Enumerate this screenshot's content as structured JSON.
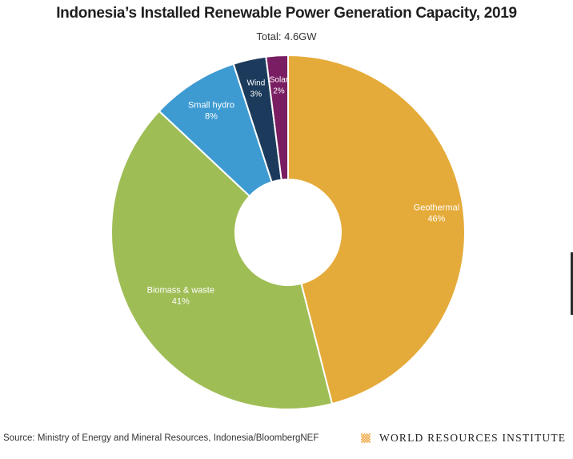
{
  "header": {
    "title": "Indonesia’s Installed Renewable Power Generation Capacity, 2019",
    "subtitle": "Total: 4.6GW"
  },
  "footer": {
    "source": "Source: Ministry of Energy and Mineral Resources, Indonesia/BloombergNEF",
    "org_name": "WORLD RESOURCES INSTITUTE",
    "org_logo_icon": "wri-diamond-logo-icon",
    "org_logo_color": "#f0a848"
  },
  "chart_data": {
    "type": "pie",
    "title": "Indonesia’s Installed Renewable Power Generation Capacity, 2019",
    "subtitle": "Total: 4.6GW",
    "total": "4.6GW",
    "donut": true,
    "slices": [
      {
        "label": "Geothermal",
        "value": 46,
        "value_label": "46%",
        "color": "#e5ab3a"
      },
      {
        "label": "Biomass & waste",
        "value": 41,
        "value_label": "41%",
        "color": "#9fbd55"
      },
      {
        "label": "Small hydro",
        "value": 8,
        "value_label": "8%",
        "color": "#3d9bd2"
      },
      {
        "label": "Wind",
        "value": 3,
        "value_label": "3%",
        "color": "#1c3b5c"
      },
      {
        "label": "Solar",
        "value": 2,
        "value_label": "2%",
        "color": "#7a1e63"
      }
    ]
  }
}
